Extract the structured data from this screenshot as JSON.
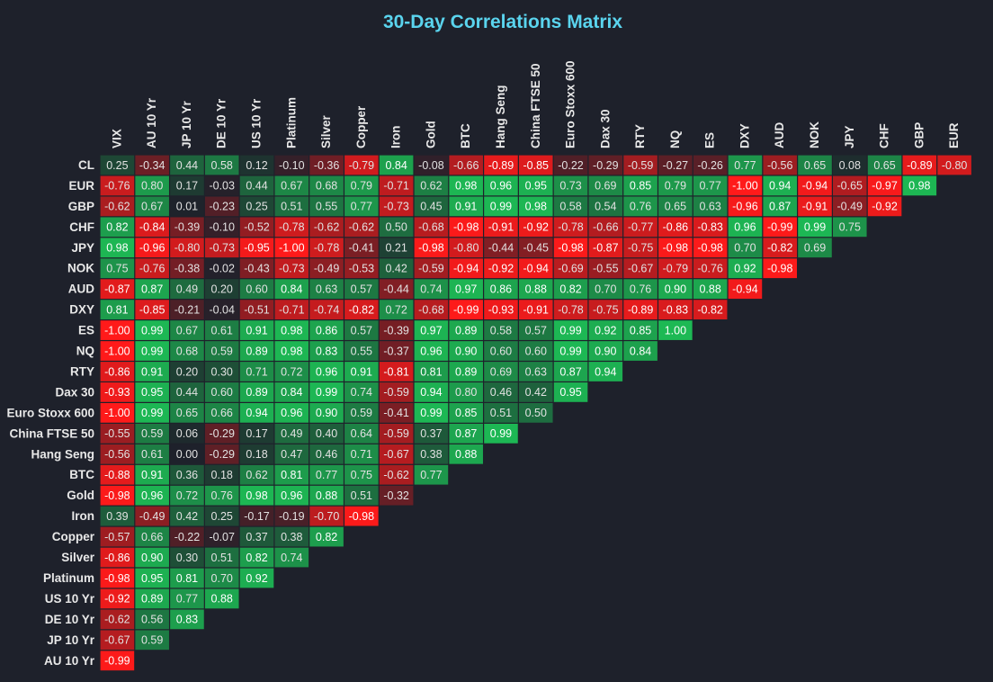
{
  "chart_data": {
    "type": "heatmap",
    "title": "30-Day Correlations Matrix",
    "columns": [
      "VIX",
      "AU 10 Yr",
      "JP 10 Yr",
      "DE 10 Yr",
      "US 10 Yr",
      "Platinum",
      "Silver",
      "Copper",
      "Iron",
      "Gold",
      "BTC",
      "Hang Seng",
      "China FTSE 50",
      "Euro Stoxx 600",
      "Dax 30",
      "RTY",
      "NQ",
      "ES",
      "DXY",
      "AUD",
      "NOK",
      "JPY",
      "CHF",
      "GBP",
      "EUR"
    ],
    "rows": [
      "CL",
      "EUR",
      "GBP",
      "CHF",
      "JPY",
      "NOK",
      "AUD",
      "DXY",
      "ES",
      "NQ",
      "RTY",
      "Dax 30",
      "Euro Stoxx 600",
      "China FTSE 50",
      "Hang Seng",
      "BTC",
      "Gold",
      "Iron",
      "Copper",
      "Silver",
      "Platinum",
      "US 10 Yr",
      "DE 10 Yr",
      "JP 10 Yr",
      "AU 10 Yr"
    ],
    "values": [
      [
        0.25,
        -0.34,
        0.44,
        0.58,
        0.12,
        -0.1,
        -0.36,
        -0.79,
        0.84,
        -0.08,
        -0.66,
        -0.89,
        -0.85,
        -0.22,
        -0.29,
        -0.59,
        -0.27,
        -0.26,
        0.77,
        -0.56,
        0.65,
        0.08,
        0.65,
        -0.89,
        -0.8
      ],
      [
        -0.76,
        0.8,
        0.17,
        -0.03,
        0.44,
        0.67,
        0.68,
        0.79,
        -0.71,
        0.62,
        0.98,
        0.96,
        0.95,
        0.73,
        0.69,
        0.85,
        0.79,
        0.77,
        -1.0,
        0.94,
        -0.94,
        -0.65,
        -0.97,
        0.98
      ],
      [
        -0.62,
        0.67,
        0.01,
        -0.23,
        0.25,
        0.51,
        0.55,
        0.77,
        -0.73,
        0.45,
        0.91,
        0.99,
        0.98,
        0.58,
        0.54,
        0.76,
        0.65,
        0.63,
        -0.96,
        0.87,
        -0.91,
        -0.49,
        -0.92
      ],
      [
        0.82,
        -0.84,
        -0.39,
        -0.1,
        -0.52,
        -0.78,
        -0.62,
        -0.62,
        0.5,
        -0.68,
        -0.98,
        -0.91,
        -0.92,
        -0.78,
        -0.66,
        -0.77,
        -0.86,
        -0.83,
        0.96,
        -0.99,
        0.99,
        0.75
      ],
      [
        0.98,
        -0.96,
        -0.8,
        -0.73,
        -0.95,
        -1.0,
        -0.78,
        -0.41,
        0.21,
        -0.98,
        -0.8,
        -0.44,
        -0.45,
        -0.98,
        -0.87,
        -0.75,
        -0.98,
        -0.98,
        0.7,
        -0.82,
        0.69
      ],
      [
        0.75,
        -0.76,
        -0.38,
        -0.02,
        -0.43,
        -0.73,
        -0.49,
        -0.53,
        0.42,
        -0.59,
        -0.94,
        -0.92,
        -0.94,
        -0.69,
        -0.55,
        -0.67,
        -0.79,
        -0.76,
        0.92,
        -0.98
      ],
      [
        -0.87,
        0.87,
        0.49,
        0.2,
        0.6,
        0.84,
        0.63,
        0.57,
        -0.44,
        0.74,
        0.97,
        0.86,
        0.88,
        0.82,
        0.7,
        0.76,
        0.9,
        0.88,
        -0.94
      ],
      [
        0.81,
        -0.85,
        -0.21,
        -0.04,
        -0.51,
        -0.71,
        -0.74,
        -0.82,
        0.72,
        -0.68,
        -0.99,
        -0.93,
        -0.91,
        -0.78,
        -0.75,
        -0.89,
        -0.83,
        -0.82
      ],
      [
        -1.0,
        0.99,
        0.67,
        0.61,
        0.91,
        0.98,
        0.86,
        0.57,
        -0.39,
        0.97,
        0.89,
        0.58,
        0.57,
        0.99,
        0.92,
        0.85,
        1.0
      ],
      [
        -1.0,
        0.99,
        0.68,
        0.59,
        0.89,
        0.98,
        0.83,
        0.55,
        -0.37,
        0.96,
        0.9,
        0.6,
        0.6,
        0.99,
        0.9,
        0.84
      ],
      [
        -0.86,
        0.91,
        0.2,
        0.3,
        0.71,
        0.72,
        0.96,
        0.91,
        -0.81,
        0.81,
        0.89,
        0.69,
        0.63,
        0.87,
        0.94
      ],
      [
        -0.93,
        0.95,
        0.44,
        0.6,
        0.89,
        0.84,
        0.99,
        0.74,
        -0.59,
        0.94,
        0.8,
        0.46,
        0.42,
        0.95
      ],
      [
        -1.0,
        0.99,
        0.65,
        0.66,
        0.94,
        0.96,
        0.9,
        0.59,
        -0.41,
        0.99,
        0.85,
        0.51,
        0.5
      ],
      [
        -0.55,
        0.59,
        0.06,
        -0.29,
        0.17,
        0.49,
        0.4,
        0.64,
        -0.59,
        0.37,
        0.87,
        0.99
      ],
      [
        -0.56,
        0.61,
        0.0,
        -0.29,
        0.18,
        0.47,
        0.46,
        0.71,
        -0.67,
        0.38,
        0.88
      ],
      [
        -0.88,
        0.91,
        0.36,
        0.18,
        0.62,
        0.81,
        0.77,
        0.75,
        -0.62,
        0.77
      ],
      [
        -0.98,
        0.96,
        0.72,
        0.76,
        0.98,
        0.96,
        0.88,
        0.51,
        -0.32
      ],
      [
        0.39,
        -0.49,
        0.42,
        0.25,
        -0.17,
        -0.19,
        -0.7,
        -0.98
      ],
      [
        -0.57,
        0.66,
        -0.22,
        -0.07,
        0.37,
        0.38,
        0.82
      ],
      [
        -0.86,
        0.9,
        0.3,
        0.51,
        0.82,
        0.74
      ],
      [
        -0.98,
        0.95,
        0.81,
        0.7,
        0.92
      ],
      [
        -0.92,
        0.89,
        0.77,
        0.88
      ],
      [
        -0.62,
        0.56,
        0.83
      ],
      [
        -0.67,
        0.59
      ],
      [
        -0.99
      ]
    ],
    "vmin": -1,
    "vmax": 1,
    "colors": {
      "negative": "#ff1a1a",
      "neutral": "#1e212b",
      "positive": "#1db954"
    },
    "background": "#1e212b",
    "title_color": "#5ad4ee"
  }
}
